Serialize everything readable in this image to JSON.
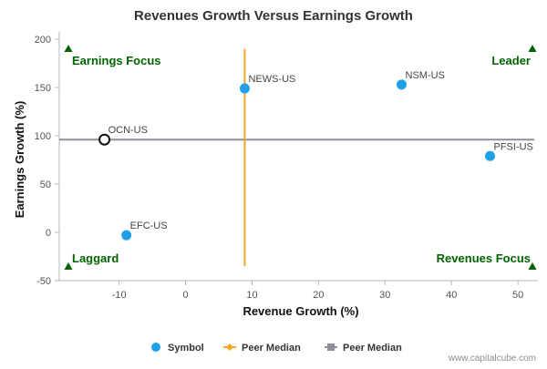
{
  "chart_data": {
    "type": "scatter",
    "title": "Revenues Growth Versus Earnings Growth",
    "xlabel": "Revenue Growth (%)",
    "ylabel": "Earnings Growth (%)",
    "xlim": [
      -19,
      53
    ],
    "ylim": [
      -50,
      200
    ],
    "x_ticks": [
      -10,
      0,
      10,
      20,
      30,
      40,
      50
    ],
    "y_ticks": [
      -50,
      0,
      50,
      100,
      150,
      200
    ],
    "grid": false,
    "legend_position": "bottom",
    "points": [
      {
        "label": "NEWS-US",
        "x": 8.9,
        "y": 149
      },
      {
        "label": "NSM-US",
        "x": 32.5,
        "y": 153
      },
      {
        "label": "PFSI-US",
        "x": 45.8,
        "y": 79
      },
      {
        "label": "EFC-US",
        "x": -8.9,
        "y": -3
      },
      {
        "label": "OCN-US",
        "x": -12.2,
        "y": 96,
        "highlight": true
      }
    ],
    "peer_median_revenue": 8.9,
    "peer_median_earnings": 96,
    "peer_median_revenue_line_y_range": [
      -35,
      190
    ],
    "quadrant_labels": {
      "top_left": "Earnings Focus",
      "top_right": "Leader",
      "bottom_left": "Laggard",
      "bottom_right": "Revenues Focus"
    },
    "legend": [
      {
        "name": "Symbol",
        "color": "#1fa0e6",
        "marker": "circle"
      },
      {
        "name": "Peer Median",
        "color": "#f5a623",
        "marker": "diamond-line"
      },
      {
        "name": "Peer Median",
        "color": "#8a9199",
        "marker": "square-line"
      }
    ],
    "colors": {
      "point": "#1fa0e6",
      "highlight_stroke": "#111111",
      "median_x_line": "#f5a623",
      "median_y_line": "#8a9199",
      "quadrant_text": "#006400",
      "axis": "#b0b7c0"
    }
  },
  "watermark": "www.capitalcube.com"
}
